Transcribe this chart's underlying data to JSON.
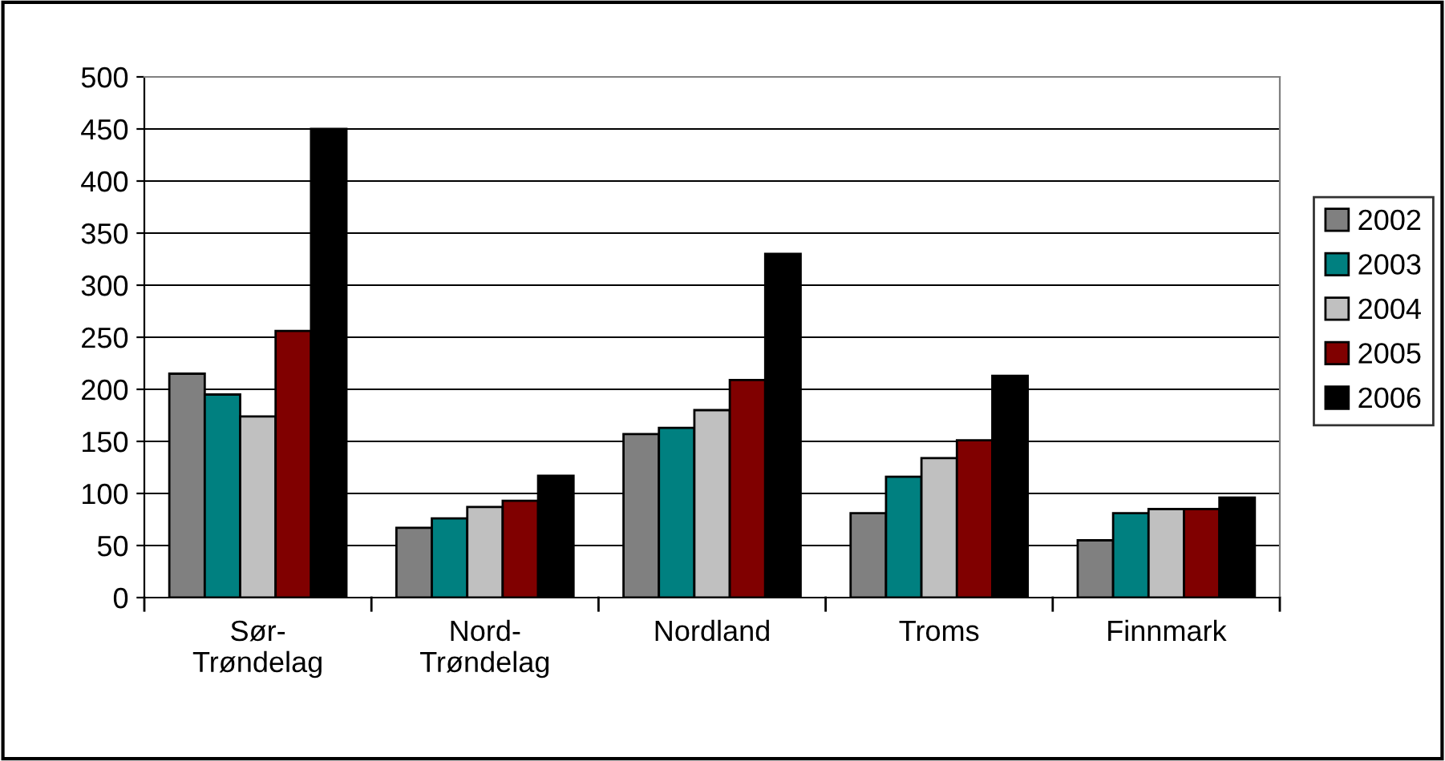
{
  "chart_data": {
    "type": "bar",
    "categories": [
      "Sør-\nTrøndelag",
      "Nord-\nTrøndelag",
      "Nordland",
      "Troms",
      "Finnmark"
    ],
    "series": [
      {
        "name": "2002",
        "color": "#808080",
        "values": [
          215,
          67,
          157,
          81,
          55
        ]
      },
      {
        "name": "2003",
        "color": "#008080",
        "values": [
          195,
          76,
          163,
          116,
          81
        ]
      },
      {
        "name": "2004",
        "color": "#c0c0c0",
        "values": [
          174,
          87,
          180,
          134,
          85
        ]
      },
      {
        "name": "2005",
        "color": "#800000",
        "values": [
          256,
          93,
          209,
          151,
          85
        ]
      },
      {
        "name": "2006",
        "color": "#000000",
        "values": [
          450,
          117,
          330,
          213,
          96
        ]
      }
    ],
    "ylim": [
      0,
      500
    ],
    "yticks": [
      0,
      50,
      100,
      150,
      200,
      250,
      300,
      350,
      400,
      450,
      500
    ],
    "grid": "y",
    "legend": "right"
  }
}
